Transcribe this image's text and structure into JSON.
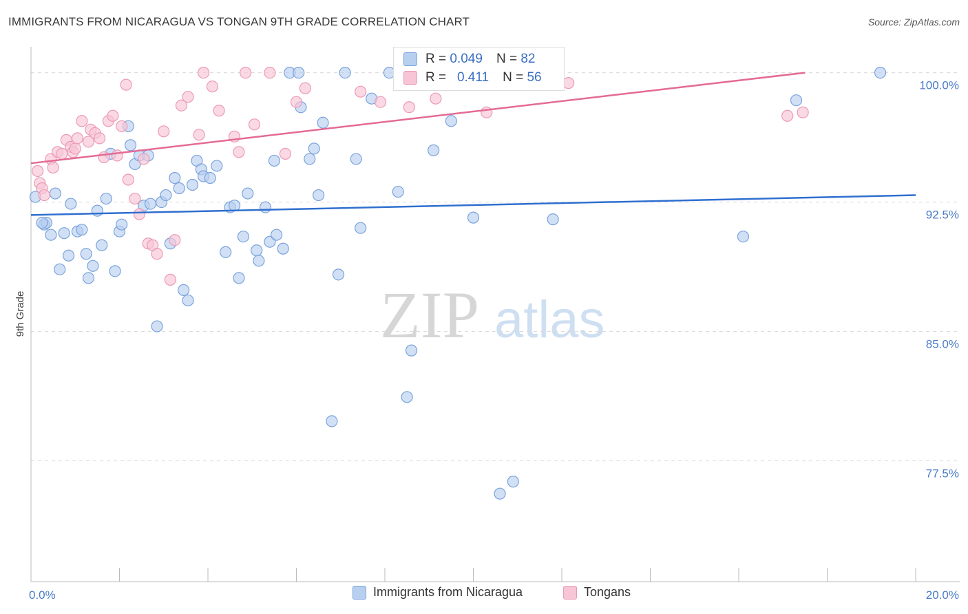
{
  "title": "IMMIGRANTS FROM NICARAGUA VS TONGAN 9TH GRADE CORRELATION CHART",
  "source": "Source: ZipAtlas.com",
  "watermark": {
    "zip": "ZIP",
    "atlas": "atlas"
  },
  "colors": {
    "blue_fill": "#b8d0f0",
    "blue_stroke": "#7aa3dc",
    "blue_line": "#2f6fcf",
    "pink_fill": "#f7c5d6",
    "pink_stroke": "#eb9ab5",
    "pink_line": "#e46a95",
    "tick_text": "#4a7cc7",
    "grid": "#d8d8d8"
  },
  "stats_legend": {
    "rows": [
      {
        "r_label": "R =",
        "r_value": "0.049",
        "n_label": "N =",
        "n_value": "82",
        "color": "#b8d0f0",
        "stroke": "#7aa3dc"
      },
      {
        "r_label": "R =",
        "r_value": "0.411",
        "n_label": "N =",
        "n_value": "56",
        "color": "#f7c5d6",
        "stroke": "#eb9ab5"
      }
    ]
  },
  "legend": [
    {
      "label": "Immigrants from Nicaragua",
      "color": "#b8d0f0",
      "stroke": "#7aa3dc"
    },
    {
      "label": "Tongans",
      "color": "#f7c5d6",
      "stroke": "#eb9ab5"
    }
  ],
  "chart_data": {
    "type": "scatter",
    "ylabel": "9th Grade",
    "xlim": [
      0,
      20
    ],
    "ylim": [
      70.5,
      101.5
    ],
    "x_tick_labels": [
      {
        "value": 0,
        "label": "0.0%"
      },
      {
        "value": 20,
        "label": "20.0%"
      }
    ],
    "x_minor_ticks": [
      0,
      2,
      4,
      6,
      8,
      10,
      12,
      14,
      16,
      18,
      20
    ],
    "y_ticks": [
      {
        "value": 100,
        "label": "100.0%"
      },
      {
        "value": 92.5,
        "label": "92.5%"
      },
      {
        "value": 85,
        "label": "85.0%"
      },
      {
        "value": 77.5,
        "label": "77.5%"
      }
    ],
    "series": [
      {
        "name": "Immigrants from Nicaragua",
        "trend": {
          "x0": 0,
          "y0": 91.75,
          "x1": 20,
          "y1": 92.9
        },
        "points": [
          [
            0.1,
            92.8
          ],
          [
            0.3,
            91.2
          ],
          [
            0.35,
            91.3
          ],
          [
            0.45,
            90.6
          ],
          [
            0.55,
            93.0
          ],
          [
            0.65,
            88.6
          ],
          [
            0.75,
            90.7
          ],
          [
            0.85,
            89.4
          ],
          [
            0.9,
            92.4
          ],
          [
            1.05,
            90.8
          ],
          [
            1.15,
            90.9
          ],
          [
            1.25,
            89.5
          ],
          [
            1.3,
            88.1
          ],
          [
            1.4,
            88.8
          ],
          [
            1.5,
            92.0
          ],
          [
            1.6,
            90.0
          ],
          [
            1.7,
            92.7
          ],
          [
            1.8,
            95.3
          ],
          [
            1.9,
            88.5
          ],
          [
            2.0,
            90.8
          ],
          [
            2.05,
            91.2
          ],
          [
            2.2,
            96.9
          ],
          [
            2.25,
            95.8
          ],
          [
            2.35,
            94.7
          ],
          [
            2.45,
            95.2
          ],
          [
            2.55,
            92.3
          ],
          [
            2.65,
            95.2
          ],
          [
            2.7,
            92.4
          ],
          [
            2.85,
            85.3
          ],
          [
            2.95,
            92.5
          ],
          [
            3.05,
            92.9
          ],
          [
            3.15,
            90.1
          ],
          [
            3.25,
            93.9
          ],
          [
            3.35,
            93.3
          ],
          [
            3.45,
            87.4
          ],
          [
            3.55,
            86.8
          ],
          [
            3.65,
            93.5
          ],
          [
            3.75,
            94.9
          ],
          [
            3.85,
            94.4
          ],
          [
            3.9,
            94.0
          ],
          [
            4.05,
            93.9
          ],
          [
            4.2,
            94.6
          ],
          [
            4.4,
            89.6
          ],
          [
            4.5,
            92.2
          ],
          [
            4.6,
            92.3
          ],
          [
            4.7,
            88.1
          ],
          [
            4.8,
            90.5
          ],
          [
            4.9,
            93.0
          ],
          [
            5.1,
            89.7
          ],
          [
            5.15,
            89.1
          ],
          [
            5.3,
            92.2
          ],
          [
            5.4,
            90.2
          ],
          [
            5.5,
            94.9
          ],
          [
            5.55,
            90.6
          ],
          [
            5.7,
            89.8
          ],
          [
            5.85,
            100.0
          ],
          [
            6.05,
            100.0
          ],
          [
            6.1,
            98.0
          ],
          [
            6.3,
            95.0
          ],
          [
            6.4,
            95.6
          ],
          [
            6.5,
            92.9
          ],
          [
            6.6,
            97.1
          ],
          [
            6.8,
            79.8
          ],
          [
            6.95,
            88.3
          ],
          [
            7.1,
            100.0
          ],
          [
            7.35,
            95.0
          ],
          [
            7.45,
            91.0
          ],
          [
            7.7,
            98.5
          ],
          [
            8.1,
            100.0
          ],
          [
            8.3,
            93.1
          ],
          [
            8.5,
            81.2
          ],
          [
            8.6,
            83.9
          ],
          [
            9.1,
            95.5
          ],
          [
            9.5,
            97.2
          ],
          [
            10.0,
            91.6
          ],
          [
            10.6,
            75.6
          ],
          [
            10.9,
            76.3
          ],
          [
            11.8,
            91.5
          ],
          [
            16.1,
            90.5
          ],
          [
            17.3,
            98.4
          ],
          [
            19.2,
            100.0
          ],
          [
            0.25,
            91.3
          ]
        ]
      },
      {
        "name": "Tongans",
        "trend": {
          "x0": 0,
          "y0": 94.75,
          "x1": 17.5,
          "y1": 100.0
        },
        "points": [
          [
            0.15,
            94.3
          ],
          [
            0.2,
            93.6
          ],
          [
            0.25,
            93.3
          ],
          [
            0.3,
            92.9
          ],
          [
            0.45,
            95.0
          ],
          [
            0.5,
            94.5
          ],
          [
            0.6,
            95.4
          ],
          [
            0.7,
            95.3
          ],
          [
            0.8,
            96.1
          ],
          [
            0.9,
            95.7
          ],
          [
            0.95,
            95.4
          ],
          [
            1.0,
            95.6
          ],
          [
            1.05,
            96.2
          ],
          [
            1.15,
            97.2
          ],
          [
            1.3,
            96.0
          ],
          [
            1.35,
            96.7
          ],
          [
            1.45,
            96.5
          ],
          [
            1.55,
            96.2
          ],
          [
            1.65,
            95.1
          ],
          [
            1.75,
            97.2
          ],
          [
            1.85,
            97.5
          ],
          [
            1.95,
            95.2
          ],
          [
            2.05,
            96.9
          ],
          [
            2.15,
            99.3
          ],
          [
            2.2,
            93.8
          ],
          [
            2.35,
            92.7
          ],
          [
            2.45,
            91.8
          ],
          [
            2.55,
            95.0
          ],
          [
            2.65,
            90.1
          ],
          [
            2.75,
            90.0
          ],
          [
            2.85,
            89.5
          ],
          [
            3.0,
            96.6
          ],
          [
            3.15,
            88.0
          ],
          [
            3.25,
            90.3
          ],
          [
            3.4,
            98.1
          ],
          [
            3.55,
            98.6
          ],
          [
            3.8,
            96.4
          ],
          [
            3.9,
            100.0
          ],
          [
            4.1,
            99.2
          ],
          [
            4.25,
            97.8
          ],
          [
            4.6,
            96.3
          ],
          [
            4.7,
            95.4
          ],
          [
            4.85,
            100.0
          ],
          [
            5.05,
            97.0
          ],
          [
            5.4,
            100.0
          ],
          [
            5.75,
            95.3
          ],
          [
            6.0,
            98.3
          ],
          [
            6.2,
            99.1
          ],
          [
            7.45,
            98.9
          ],
          [
            7.9,
            98.3
          ],
          [
            8.55,
            98.0
          ],
          [
            9.15,
            98.5
          ],
          [
            10.3,
            97.7
          ],
          [
            12.15,
            99.4
          ],
          [
            17.1,
            97.5
          ],
          [
            17.45,
            97.7
          ]
        ]
      }
    ]
  }
}
